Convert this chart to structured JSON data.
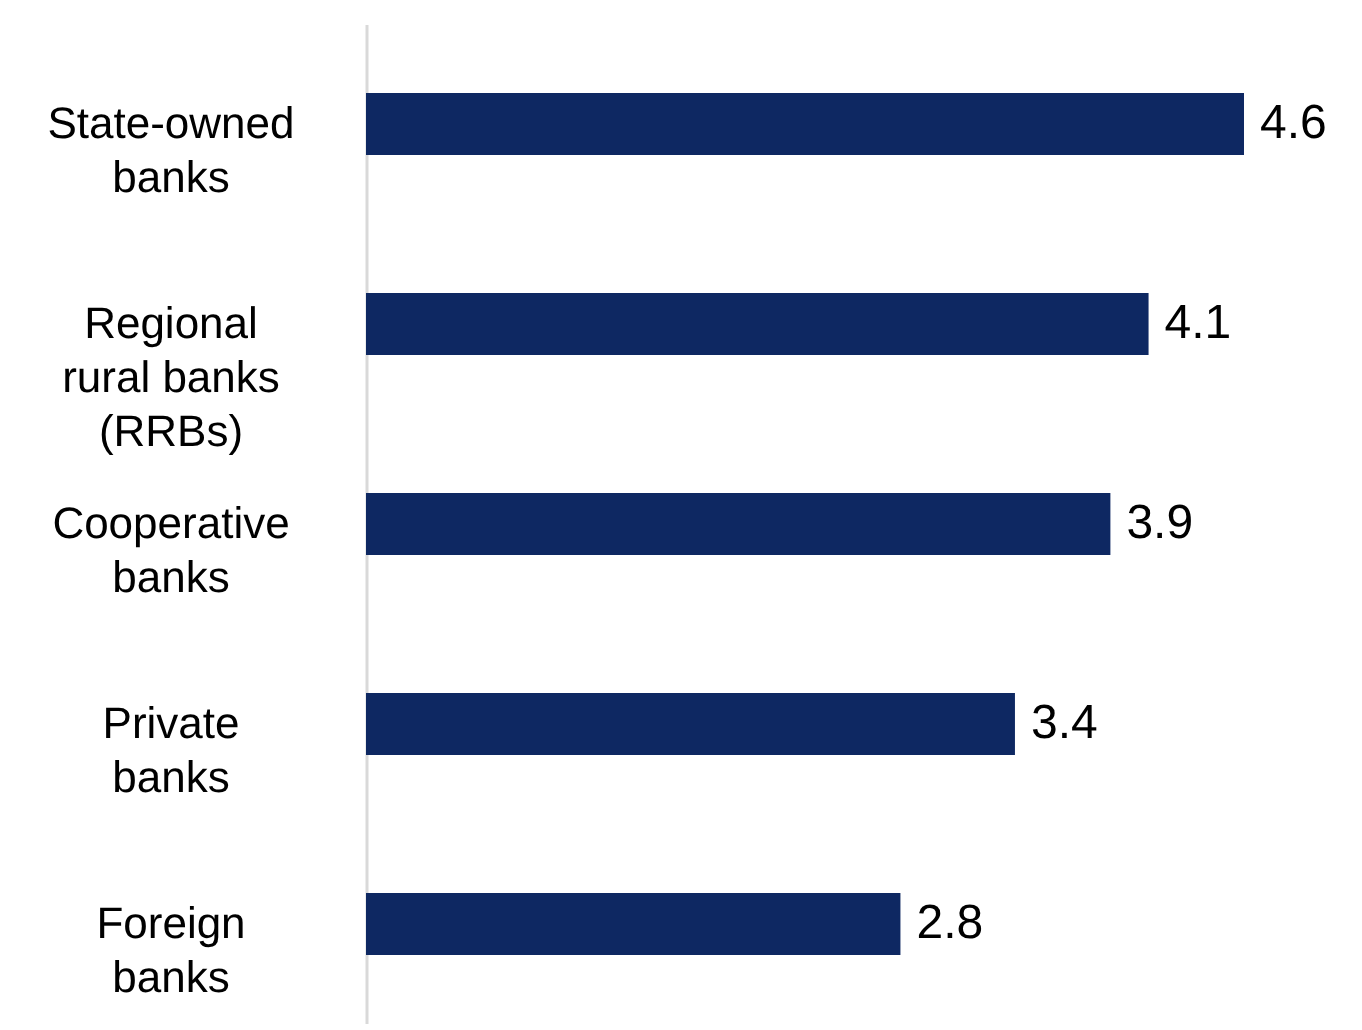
{
  "chart_data": {
    "type": "bar",
    "orientation": "horizontal",
    "categories": [
      "State-owned banks",
      "Regional rural banks (RRBs)",
      "Cooperative banks",
      "Private banks",
      "Foreign banks"
    ],
    "values": [
      4.6,
      4.1,
      3.9,
      3.4,
      2.8
    ],
    "color": "#0e2862",
    "data_labels": true
  }
}
